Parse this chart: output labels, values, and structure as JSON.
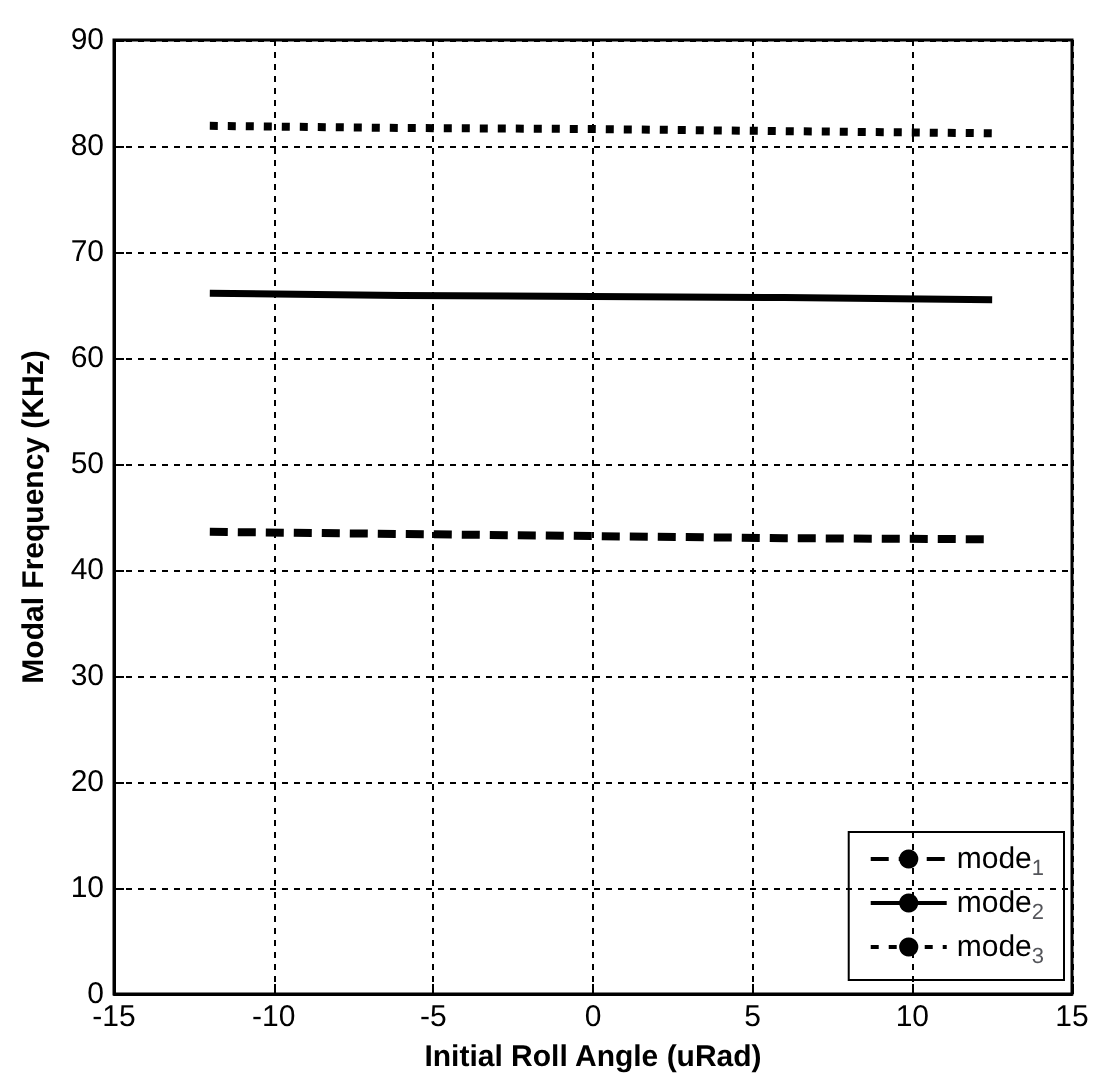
{
  "chart_data": {
    "type": "line",
    "xlabel": "Initial Roll Angle (uRad)",
    "ylabel": "Modal Frequency (KHz)",
    "xlim": [
      -15,
      15
    ],
    "xticks": [
      -15,
      -10,
      -5,
      0,
      5,
      10,
      15
    ],
    "ylim": [
      0,
      90
    ],
    "yticks": [
      0,
      10,
      20,
      30,
      40,
      50,
      60,
      70,
      80,
      90
    ],
    "grid": true,
    "legend": "bottom right",
    "marker": "none",
    "series": [
      {
        "name": "mode$_{1}$",
        "color": "#000000",
        "line_style": "dashed",
        "x": [
          -12,
          -6,
          0,
          6,
          12.5
        ],
        "values": [
          43.6,
          43.4,
          43.2,
          43.0,
          42.9
        ]
      },
      {
        "name": "mode$_{2}$",
        "color": "#000000",
        "line_style": "solid",
        "x": [
          -12,
          -6,
          0,
          6,
          12.5
        ],
        "values": [
          66.1,
          65.9,
          65.8,
          65.7,
          65.5
        ]
      },
      {
        "name": "mode$_{3}$",
        "color": "#000000",
        "line_style": "dotted",
        "x": [
          -12,
          -6,
          0,
          6,
          12.5
        ],
        "values": [
          81.9,
          81.7,
          81.6,
          81.4,
          81.2
        ]
      }
    ]
  }
}
